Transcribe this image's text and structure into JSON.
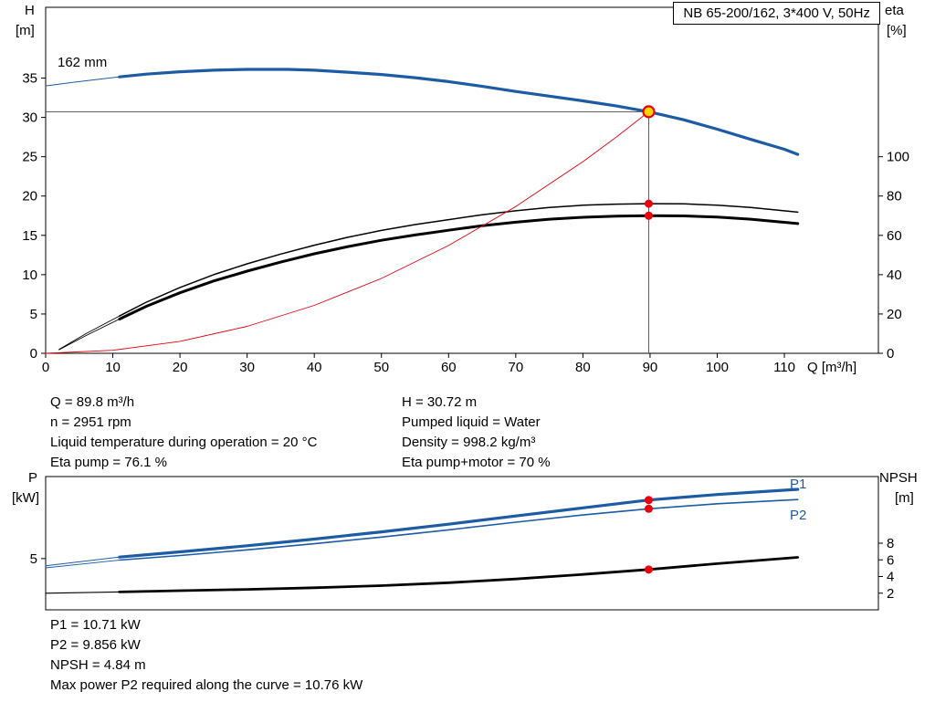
{
  "header": {
    "title_box": "NB 65-200/162, 3*400 V, 50Hz"
  },
  "axis_titles": {
    "top_left_1": "H",
    "top_left_2": "[m]",
    "top_right_1": "eta",
    "top_right_2": "[%]",
    "x": "Q [m³/h]",
    "bottom_left_1": "P",
    "bottom_left_2": "[kW]",
    "bottom_right_1": "NPSH",
    "bottom_right_2": "[m]"
  },
  "curve_labels": {
    "impeller": "162 mm",
    "p1": "P1",
    "p2": "P2"
  },
  "operating_point_info": {
    "left": [
      "Q = 89.8 m³/h",
      "n = 2951 rpm",
      "Liquid temperature during operation = 20 °C",
      "Eta pump = 76.1 %"
    ],
    "right": [
      "H = 30.72 m",
      "Pumped liquid = Water",
      "Density = 998.2 kg/m³",
      "Eta pump+motor = 70 %"
    ]
  },
  "power_info": [
    "P1 = 10.71 kW",
    "P2 = 9.856 kW",
    "NPSH = 4.84 m",
    "Max power P2 required along the curve = 10.76 kW"
  ],
  "colors": {
    "curve_blue": "#1d5ba4",
    "marker_red": "#e8000d",
    "duty_yellow": "#ffd500",
    "black": "#000000",
    "ref_gray": "#4d4d4d"
  },
  "chart_data": [
    {
      "type": "line",
      "name": "qh-eta-chart",
      "title": "NB 65-200/162, 3*400 V, 50Hz",
      "xlabel": "Q [m³/h]",
      "ylabel_left": "H [m]",
      "ylabel_right": "eta [%]",
      "xlim": [
        0,
        124
      ],
      "ylim_left": [
        0,
        44
      ],
      "ylim_right": [
        0,
        176
      ],
      "x_ticks": [
        0,
        10,
        20,
        30,
        40,
        50,
        60,
        70,
        80,
        90,
        100,
        110
      ],
      "y_ticks_left": [
        0,
        5,
        10,
        15,
        20,
        25,
        30,
        35
      ],
      "y_ticks_right": [
        0,
        20,
        40,
        60,
        80,
        100
      ],
      "grid": false,
      "legend": "none",
      "duty_point": {
        "q": 89.8,
        "h": 30.72,
        "eta_pump": 76.1,
        "eta_pump_motor": 70
      },
      "ref_lines": [
        {
          "type": "h",
          "y": 30.72,
          "x1": 0,
          "x2": 89.8,
          "color": "#4d4d4d",
          "width": 0.9
        },
        {
          "type": "v",
          "x": 89.8,
          "y1": 0,
          "y2": 30.72,
          "color": "#4d4d4d",
          "width": 0.9
        }
      ],
      "series": [
        {
          "name": "pump-curve-lead",
          "axis": "left",
          "color": "#1d5ba4",
          "width": 1,
          "points": [
            [
              0,
              34.0
            ],
            [
              4,
              34.45
            ],
            [
              8,
              34.85
            ],
            [
              11,
              35.15
            ]
          ]
        },
        {
          "name": "pump-curve-162mm",
          "axis": "left",
          "color": "#1d5ba4",
          "width": 3.2,
          "points": [
            [
              11,
              35.15
            ],
            [
              15,
              35.5
            ],
            [
              20,
              35.8
            ],
            [
              25,
              36.0
            ],
            [
              30,
              36.1
            ],
            [
              36,
              36.1
            ],
            [
              40,
              36.0
            ],
            [
              45,
              35.75
            ],
            [
              50,
              35.45
            ],
            [
              55,
              35.05
            ],
            [
              60,
              34.55
            ],
            [
              65,
              33.95
            ],
            [
              70,
              33.3
            ],
            [
              75,
              32.7
            ],
            [
              80,
              32.1
            ],
            [
              85,
              31.45
            ],
            [
              89.8,
              30.72
            ],
            [
              95,
              29.7
            ],
            [
              100,
              28.5
            ],
            [
              105,
              27.2
            ],
            [
              110,
              25.95
            ],
            [
              112,
              25.3
            ]
          ]
        },
        {
          "name": "eta-pump-lead",
          "axis": "right",
          "color": "#000000",
          "width": 0.9,
          "points": [
            [
              2,
              2
            ],
            [
              6,
              10
            ],
            [
              11,
              19
            ]
          ]
        },
        {
          "name": "eta-pump-curve",
          "axis": "right",
          "color": "#000000",
          "width": 1.5,
          "points": [
            [
              11,
              19
            ],
            [
              15,
              26
            ],
            [
              20,
              33.5
            ],
            [
              25,
              40
            ],
            [
              30,
              45.5
            ],
            [
              35,
              50.5
            ],
            [
              40,
              55
            ],
            [
              45,
              59
            ],
            [
              50,
              62.5
            ],
            [
              55,
              65.5
            ],
            [
              60,
              68
            ],
            [
              65,
              70.5
            ],
            [
              70,
              72.5
            ],
            [
              75,
              74.2
            ],
            [
              80,
              75.3
            ],
            [
              85,
              75.9
            ],
            [
              89.8,
              76.1
            ],
            [
              95,
              76
            ],
            [
              100,
              75.3
            ],
            [
              105,
              74.2
            ],
            [
              112,
              71.8
            ]
          ]
        },
        {
          "name": "eta-pump-motor-lead",
          "axis": "right",
          "color": "#000000",
          "width": 0.9,
          "points": [
            [
              2,
              1.8
            ],
            [
              6,
              9
            ],
            [
              11,
              17.4
            ]
          ]
        },
        {
          "name": "eta-pump-motor-curve",
          "axis": "right",
          "color": "#000000",
          "width": 3,
          "points": [
            [
              11,
              17.4
            ],
            [
              15,
              23.9
            ],
            [
              20,
              30.8
            ],
            [
              25,
              36.8
            ],
            [
              30,
              41.8
            ],
            [
              35,
              46.4
            ],
            [
              40,
              50.6
            ],
            [
              45,
              54.3
            ],
            [
              50,
              57.5
            ],
            [
              55,
              60.2
            ],
            [
              60,
              62.6
            ],
            [
              65,
              64.9
            ],
            [
              70,
              66.7
            ],
            [
              75,
              68.2
            ],
            [
              80,
              69.2
            ],
            [
              85,
              69.8
            ],
            [
              89.8,
              70
            ],
            [
              95,
              69.9
            ],
            [
              100,
              69.3
            ],
            [
              105,
              68.2
            ],
            [
              112,
              66
            ]
          ]
        },
        {
          "name": "system-curve",
          "axis": "left",
          "color": "#e8000d",
          "width": 0.9,
          "points": [
            [
              0,
              0
            ],
            [
              10,
              0.38
            ],
            [
              20,
              1.52
            ],
            [
              30,
              3.43
            ],
            [
              40,
              6.09
            ],
            [
              50,
              9.52
            ],
            [
              60,
              13.71
            ],
            [
              70,
              18.66
            ],
            [
              80,
              24.37
            ],
            [
              85,
              27.52
            ],
            [
              89.8,
              30.72
            ]
          ]
        }
      ],
      "markers": [
        {
          "name": "duty-point",
          "x": 89.8,
          "y": 30.72,
          "axis": "left",
          "kind": "duty"
        },
        {
          "name": "eta-pump-point",
          "x": 89.8,
          "y": 76.1,
          "axis": "right",
          "kind": "dot"
        },
        {
          "name": "eta-pump-motor-point",
          "x": 89.8,
          "y": 70,
          "axis": "right",
          "kind": "dot"
        }
      ]
    },
    {
      "type": "line",
      "name": "power-npsh-chart",
      "xlabel": "",
      "ylabel_left": "P [kW]",
      "ylabel_right": "NPSH [m]",
      "xlim": [
        0,
        124
      ],
      "ylim_left": [
        0,
        13
      ],
      "ylim_right": [
        0,
        16
      ],
      "x_ticks": [],
      "y_ticks_left": [
        5
      ],
      "y_ticks_right": [
        2,
        4,
        6,
        8
      ],
      "grid": false,
      "duty_point": {
        "q": 89.8,
        "p1": 10.71,
        "p2": 9.856,
        "npsh": 4.84
      },
      "ref_lines": [],
      "series": [
        {
          "name": "p1-lead",
          "axis": "left",
          "color": "#1d5ba4",
          "width": 1,
          "points": [
            [
              0,
              4.3
            ],
            [
              11,
              5.15
            ]
          ]
        },
        {
          "name": "p1-curve",
          "axis": "left",
          "color": "#1d5ba4",
          "width": 3.2,
          "points": [
            [
              11,
              5.15
            ],
            [
              20,
              5.65
            ],
            [
              30,
              6.25
            ],
            [
              40,
              6.9
            ],
            [
              50,
              7.6
            ],
            [
              60,
              8.35
            ],
            [
              70,
              9.15
            ],
            [
              80,
              9.95
            ],
            [
              89.8,
              10.71
            ],
            [
              100,
              11.25
            ],
            [
              112,
              11.75
            ]
          ]
        },
        {
          "name": "p2-lead",
          "axis": "left",
          "color": "#1d5ba4",
          "width": 0.9,
          "points": [
            [
              0,
              4.1
            ],
            [
              11,
              4.85
            ]
          ]
        },
        {
          "name": "p2-curve",
          "axis": "left",
          "color": "#1d5ba4",
          "width": 1.6,
          "points": [
            [
              11,
              4.85
            ],
            [
              20,
              5.3
            ],
            [
              30,
              5.85
            ],
            [
              40,
              6.45
            ],
            [
              50,
              7.1
            ],
            [
              60,
              7.8
            ],
            [
              70,
              8.55
            ],
            [
              80,
              9.25
            ],
            [
              89.8,
              9.856
            ],
            [
              100,
              10.35
            ],
            [
              112,
              10.76
            ]
          ]
        },
        {
          "name": "npsh-lead",
          "axis": "right",
          "color": "#000000",
          "width": 1.2,
          "points": [
            [
              0,
              2.0
            ],
            [
              11,
              2.15
            ]
          ]
        },
        {
          "name": "npsh-curve",
          "axis": "right",
          "color": "#000000",
          "width": 2.8,
          "points": [
            [
              11,
              2.15
            ],
            [
              20,
              2.3
            ],
            [
              30,
              2.45
            ],
            [
              40,
              2.65
            ],
            [
              50,
              2.9
            ],
            [
              60,
              3.25
            ],
            [
              70,
              3.7
            ],
            [
              80,
              4.25
            ],
            [
              89.8,
              4.84
            ],
            [
              100,
              5.55
            ],
            [
              112,
              6.3
            ]
          ]
        }
      ],
      "markers": [
        {
          "name": "p1-point",
          "x": 89.8,
          "y": 10.71,
          "axis": "left",
          "kind": "dot"
        },
        {
          "name": "p2-point",
          "x": 89.8,
          "y": 9.856,
          "axis": "left",
          "kind": "dot"
        },
        {
          "name": "npsh-point",
          "x": 89.8,
          "y": 4.84,
          "axis": "right",
          "kind": "dot"
        }
      ]
    }
  ]
}
